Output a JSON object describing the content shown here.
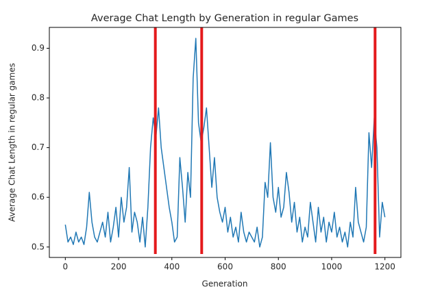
{
  "chart_data": {
    "type": "line",
    "title": "Average Chat Length by Generation in regular Games",
    "x_label": "Generation",
    "y_label": "Average Chat Length in regular games",
    "x": [
      0,
      10,
      20,
      30,
      40,
      50,
      60,
      70,
      80,
      90,
      100,
      110,
      120,
      130,
      140,
      150,
      160,
      170,
      180,
      190,
      200,
      210,
      220,
      230,
      240,
      250,
      260,
      270,
      280,
      290,
      300,
      310,
      320,
      330,
      340,
      350,
      360,
      370,
      380,
      390,
      400,
      410,
      420,
      430,
      440,
      450,
      460,
      470,
      480,
      490,
      500,
      510,
      520,
      530,
      540,
      550,
      560,
      570,
      580,
      590,
      600,
      610,
      620,
      630,
      640,
      650,
      660,
      670,
      680,
      690,
      700,
      710,
      720,
      730,
      740,
      750,
      760,
      770,
      780,
      790,
      800,
      810,
      820,
      830,
      840,
      850,
      860,
      870,
      880,
      890,
      900,
      910,
      920,
      930,
      940,
      950,
      960,
      970,
      980,
      990,
      1000,
      1010,
      1020,
      1030,
      1040,
      1050,
      1060,
      1070,
      1080,
      1090,
      1100,
      1110,
      1120,
      1130,
      1140,
      1150,
      1160,
      1170,
      1180,
      1190,
      1200
    ],
    "series": [
      {
        "color": "#1f77b4",
        "values": [
          0.545,
          0.51,
          0.52,
          0.505,
          0.53,
          0.51,
          0.52,
          0.505,
          0.54,
          0.61,
          0.55,
          0.52,
          0.51,
          0.53,
          0.55,
          0.52,
          0.57,
          0.51,
          0.54,
          0.58,
          0.52,
          0.6,
          0.55,
          0.58,
          0.66,
          0.53,
          0.57,
          0.55,
          0.51,
          0.56,
          0.5,
          0.58,
          0.7,
          0.76,
          0.72,
          0.78,
          0.7,
          0.66,
          0.62,
          0.58,
          0.55,
          0.51,
          0.52,
          0.68,
          0.62,
          0.55,
          0.65,
          0.6,
          0.84,
          0.92,
          0.75,
          0.71,
          0.74,
          0.78,
          0.7,
          0.62,
          0.68,
          0.6,
          0.57,
          0.55,
          0.58,
          0.53,
          0.56,
          0.52,
          0.54,
          0.51,
          0.57,
          0.53,
          0.51,
          0.53,
          0.52,
          0.51,
          0.54,
          0.5,
          0.52,
          0.63,
          0.6,
          0.71,
          0.6,
          0.57,
          0.62,
          0.56,
          0.58,
          0.65,
          0.61,
          0.55,
          0.59,
          0.53,
          0.56,
          0.51,
          0.54,
          0.52,
          0.59,
          0.55,
          0.51,
          0.58,
          0.53,
          0.56,
          0.51,
          0.55,
          0.53,
          0.57,
          0.52,
          0.54,
          0.51,
          0.53,
          0.5,
          0.55,
          0.52,
          0.62,
          0.55,
          0.53,
          0.51,
          0.54,
          0.73,
          0.66,
          0.76,
          0.7,
          0.52,
          0.59,
          0.56
        ]
      }
    ],
    "vlines": [
      338,
      512,
      1163
    ],
    "vline_color": "#e41a1c",
    "xlim": [
      -60,
      1260
    ],
    "ylim": [
      0.479,
      0.942
    ],
    "xticks": [
      0,
      200,
      400,
      600,
      800,
      1000,
      1200
    ],
    "yticks": [
      0.5,
      0.6,
      0.7,
      0.8,
      0.9
    ]
  }
}
